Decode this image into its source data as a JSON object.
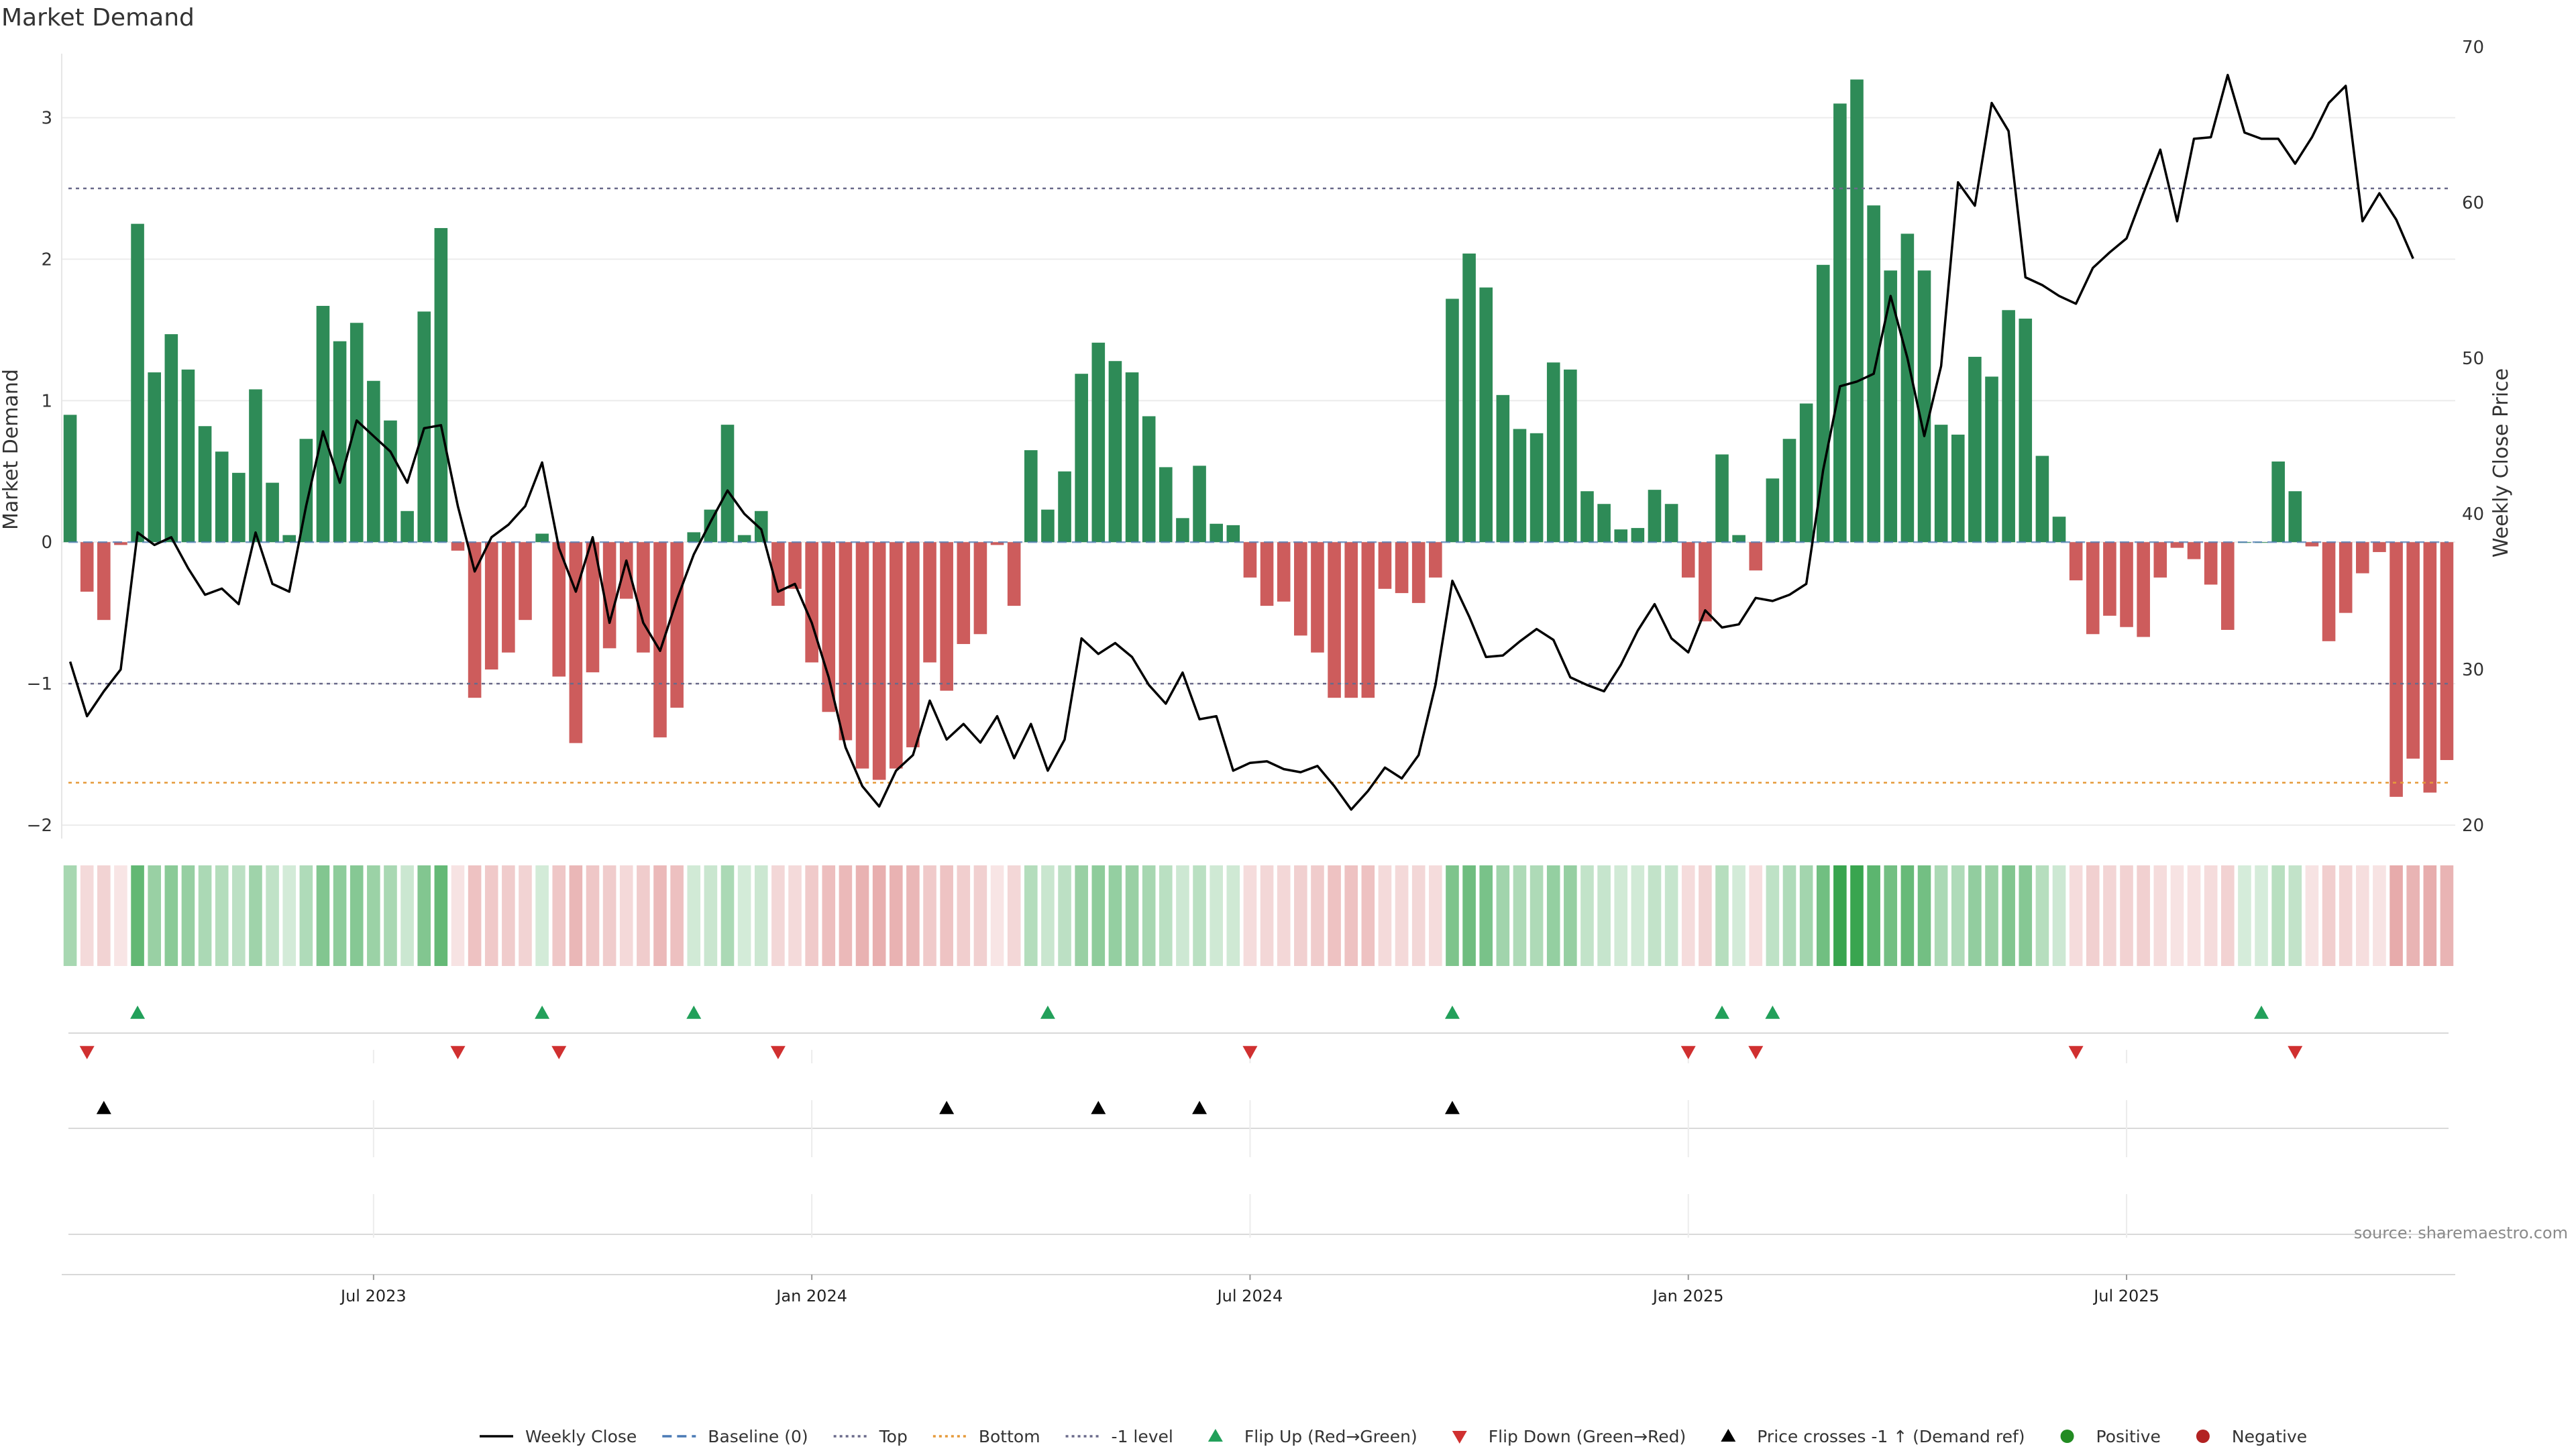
{
  "title": "Market Demand",
  "source": "source: sharemaestro.com",
  "colors": {
    "positive": "#2e8b57",
    "negative": "#cd5c5c",
    "price": "#000000",
    "top_line": "#6a6a8a",
    "bottom_line": "#e69a3a",
    "flip_up": "#22a05a",
    "flip_down": "#d03030",
    "cross_up": "#000000",
    "legend_positive": "#228b22",
    "legend_negative": "#b22222"
  },
  "chart_data": {
    "type": "bar",
    "title": "Market Demand",
    "ylabel": "Market Demand",
    "y2label": "Weekly Close Price",
    "ylim": [
      -2.0,
      3.5
    ],
    "y2lim": [
      20,
      70
    ],
    "yticks": [
      -2,
      -1,
      0,
      1,
      2,
      3
    ],
    "yticklabels": [
      "−2",
      "−1",
      "0",
      "1",
      "2",
      "3"
    ],
    "y2ticks": [
      20,
      30,
      40,
      50,
      60,
      70
    ],
    "y2ticklabels": [
      "20",
      "30",
      "40",
      "50",
      "60",
      "70"
    ],
    "reference_lines": {
      "top": 2.5,
      "bottom": -1.7,
      "minus_one": -1.0,
      "baseline": 0
    },
    "xticks": [
      {
        "label": "Jul 2023",
        "index": 18
      },
      {
        "label": "Jan 2024",
        "index": 44
      },
      {
        "label": "Jul 2024",
        "index": 70
      },
      {
        "label": "Jan 2025",
        "index": 96
      },
      {
        "label": "Jul 2025",
        "index": 122
      }
    ],
    "demand": [
      0.9,
      -0.35,
      -0.55,
      -0.02,
      2.25,
      1.2,
      1.47,
      1.22,
      0.82,
      0.64,
      0.49,
      1.08,
      0.42,
      0.05,
      0.73,
      1.67,
      1.42,
      1.55,
      1.14,
      0.86,
      0.22,
      1.63,
      2.22,
      -0.06,
      -1.1,
      -0.9,
      -0.78,
      -0.55,
      0.06,
      -0.95,
      -1.42,
      -0.92,
      -0.75,
      -0.4,
      -0.78,
      -1.38,
      -1.17,
      0.07,
      0.23,
      0.83,
      0.05,
      0.22,
      -0.45,
      -0.33,
      -0.85,
      -1.2,
      -1.4,
      -1.6,
      -1.68,
      -1.6,
      -1.45,
      -0.85,
      -1.05,
      -0.72,
      -0.65,
      -0.02,
      -0.45,
      0.65,
      0.23,
      0.5,
      1.19,
      1.41,
      1.28,
      1.2,
      0.89,
      0.53,
      0.17,
      0.54,
      0.13,
      0.12,
      -0.25,
      -0.45,
      -0.42,
      -0.66,
      -0.78,
      -1.1,
      -1.1,
      -1.1,
      -0.33,
      -0.36,
      -0.43,
      -0.25,
      1.72,
      2.04,
      1.8,
      1.04,
      0.8,
      0.77,
      1.27,
      1.22,
      0.36,
      0.27,
      0.09,
      0.1,
      0.37,
      0.27,
      -0.25,
      -0.56,
      0.62,
      0.05,
      -0.2,
      0.45,
      0.73,
      0.98,
      1.96,
      3.1,
      3.27,
      2.38,
      1.92,
      2.18,
      1.92,
      0.83,
      0.76,
      1.31,
      1.17,
      1.64,
      1.58,
      0.61,
      0.18,
      -0.27,
      -0.65,
      -0.52,
      -0.6,
      -0.67,
      -0.25,
      -0.04,
      -0.12,
      -0.3,
      -0.62,
      0.0,
      0.0,
      0.57,
      0.36,
      -0.03,
      -0.7,
      -0.5,
      -0.22,
      -0.07,
      -1.8,
      -1.53,
      -1.77,
      -1.54
    ],
    "weekly_close": [
      30.5,
      27.0,
      28.6,
      30.0,
      38.8,
      38.0,
      38.5,
      36.5,
      34.8,
      35.2,
      34.2,
      38.8,
      35.5,
      35.0,
      40.5,
      45.3,
      42.0,
      46.0,
      45.0,
      44.0,
      42.0,
      45.5,
      45.7,
      40.5,
      36.3,
      38.5,
      39.3,
      40.5,
      43.3,
      37.8,
      35.0,
      38.5,
      33.0,
      37.0,
      33.0,
      31.2,
      34.5,
      37.4,
      39.5,
      41.5,
      40.0,
      39.0,
      35.0,
      35.5,
      33.0,
      29.5,
      25.0,
      22.5,
      21.2,
      23.5,
      24.5,
      28.0,
      25.5,
      26.5,
      25.3,
      27.0,
      24.3,
      26.5,
      23.5,
      25.5,
      32.0,
      31.0,
      31.7,
      30.8,
      29.0,
      27.8,
      29.8,
      26.8,
      27.0,
      23.5,
      24.0,
      24.1,
      23.6,
      23.4,
      23.8,
      22.5,
      21.0,
      22.2,
      23.7,
      23.0,
      24.5,
      29.0,
      35.7,
      33.4,
      30.8,
      30.9,
      31.8,
      32.6,
      31.9,
      29.5,
      29.0,
      28.6,
      30.3,
      32.5,
      34.2,
      32.0,
      31.1,
      33.8,
      32.7,
      32.9,
      34.6,
      34.4,
      34.8,
      35.5,
      42.8,
      48.2,
      48.5,
      49.0,
      54.0,
      50.0,
      45.0,
      49.5,
      61.3,
      59.8,
      66.4,
      64.6,
      55.2,
      54.7,
      54.0,
      53.5,
      55.8,
      56.8,
      57.7,
      60.6,
      63.4,
      58.8,
      64.1,
      64.2,
      68.2,
      64.5,
      64.1,
      64.1,
      62.5,
      64.2,
      66.4,
      67.5,
      58.8,
      60.6,
      58.9,
      56.4
    ]
  },
  "flip_up_idx": [
    4,
    28,
    37,
    58,
    82,
    98,
    101,
    130
  ],
  "flip_down_idx": [
    1,
    23,
    29,
    42,
    70,
    96,
    100,
    119,
    132
  ],
  "price_cross_idx": [
    2,
    52,
    61,
    67,
    82
  ],
  "legend": [
    {
      "kind": "line",
      "label": "Weekly Close",
      "color": "#000000",
      "dash": ""
    },
    {
      "kind": "line",
      "label": "Baseline (0)",
      "color": "#4a7ab5",
      "dash": "14,8"
    },
    {
      "kind": "line",
      "label": "Top",
      "color": "#6a6a8a",
      "dash": "4,5"
    },
    {
      "kind": "line",
      "label": "Bottom",
      "color": "#e69a3a",
      "dash": "4,5"
    },
    {
      "kind": "line",
      "label": "-1 level",
      "color": "#6a6a8a",
      "dash": "4,5"
    },
    {
      "kind": "tri-up",
      "label": "Flip Up (Red→Green)",
      "color": "#22a05a"
    },
    {
      "kind": "tri-down",
      "label": "Flip Down (Green→Red)",
      "color": "#d03030"
    },
    {
      "kind": "tri-up",
      "label": "Price crosses -1 ↑ (Demand ref)",
      "color": "#000000"
    },
    {
      "kind": "dot",
      "label": "Positive",
      "color": "#228b22"
    },
    {
      "kind": "dot",
      "label": "Negative",
      "color": "#b22222"
    }
  ]
}
